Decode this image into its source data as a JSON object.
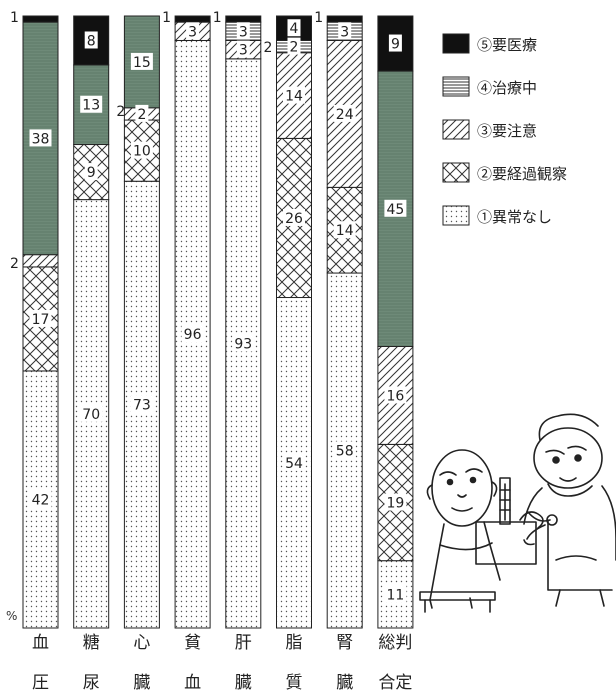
{
  "chart_data": {
    "type": "bar",
    "stacked": true,
    "orientation": "vertical",
    "unit": "%",
    "categories": [
      [
        "血",
        "圧"
      ],
      [
        "糖",
        "尿"
      ],
      [
        "心",
        "臓"
      ],
      [
        "貧",
        "血"
      ],
      [
        "肝",
        "臓"
      ],
      [
        "脂",
        "質"
      ],
      [
        "腎",
        "臓"
      ],
      [
        "総判",
        "合定"
      ]
    ],
    "series": [
      {
        "name": "①異常なし",
        "pattern": "dots",
        "values": [
          42,
          70,
          73,
          96,
          93,
          54,
          58,
          11
        ]
      },
      {
        "name": "②要経過観察",
        "pattern": "crosshatch",
        "values": [
          17,
          9,
          10,
          0,
          0,
          26,
          14,
          19
        ]
      },
      {
        "name": "③要注意",
        "pattern": "diagonal",
        "values": [
          2,
          0,
          2,
          3,
          3,
          14,
          24,
          16
        ]
      },
      {
        "name": "④治療中",
        "pattern": "horizontal",
        "values": [
          38,
          13,
          15,
          0,
          3,
          2,
          3,
          45
        ]
      },
      {
        "name": "⑤要医療",
        "pattern": "solid",
        "values": [
          1,
          8,
          0,
          1,
          1,
          4,
          1,
          9
        ]
      }
    ],
    "segment_labels": [
      [
        "42",
        "17",
        "",
        "38",
        ""
      ],
      [
        "70",
        "9",
        "",
        "13",
        "8"
      ],
      [
        "73",
        "10",
        "2",
        "15",
        ""
      ],
      [
        "96",
        "",
        "3",
        "",
        ""
      ],
      [
        "93",
        "",
        "3",
        "3",
        ""
      ],
      [
        "54",
        "26",
        "14",
        "2",
        "4"
      ],
      [
        "58",
        "14",
        "24",
        "3",
        ""
      ],
      [
        "11",
        "19",
        "16",
        "45",
        "9"
      ]
    ],
    "outside_labels": [
      {
        "category": 0,
        "text": "1"
      },
      {
        "category": 0,
        "text": "2"
      },
      {
        "category": 2,
        "text": "2"
      },
      {
        "category": 3,
        "text": "1"
      },
      {
        "category": 4,
        "text": "1"
      },
      {
        "category": 5,
        "text": "2"
      },
      {
        "category": 6,
        "text": "1"
      }
    ],
    "ylabel": "%",
    "ylim": [
      0,
      100
    ],
    "legend_placement": "top-right",
    "legend_order": [
      4,
      3,
      2,
      1,
      0
    ],
    "colors": {
      "solid": "#111111",
      "horizontal": "#555555",
      "treated_fill": "#6e8a78",
      "outline": "#222222"
    }
  },
  "illustration": {
    "icon": "doctor-patient-cartoon"
  }
}
